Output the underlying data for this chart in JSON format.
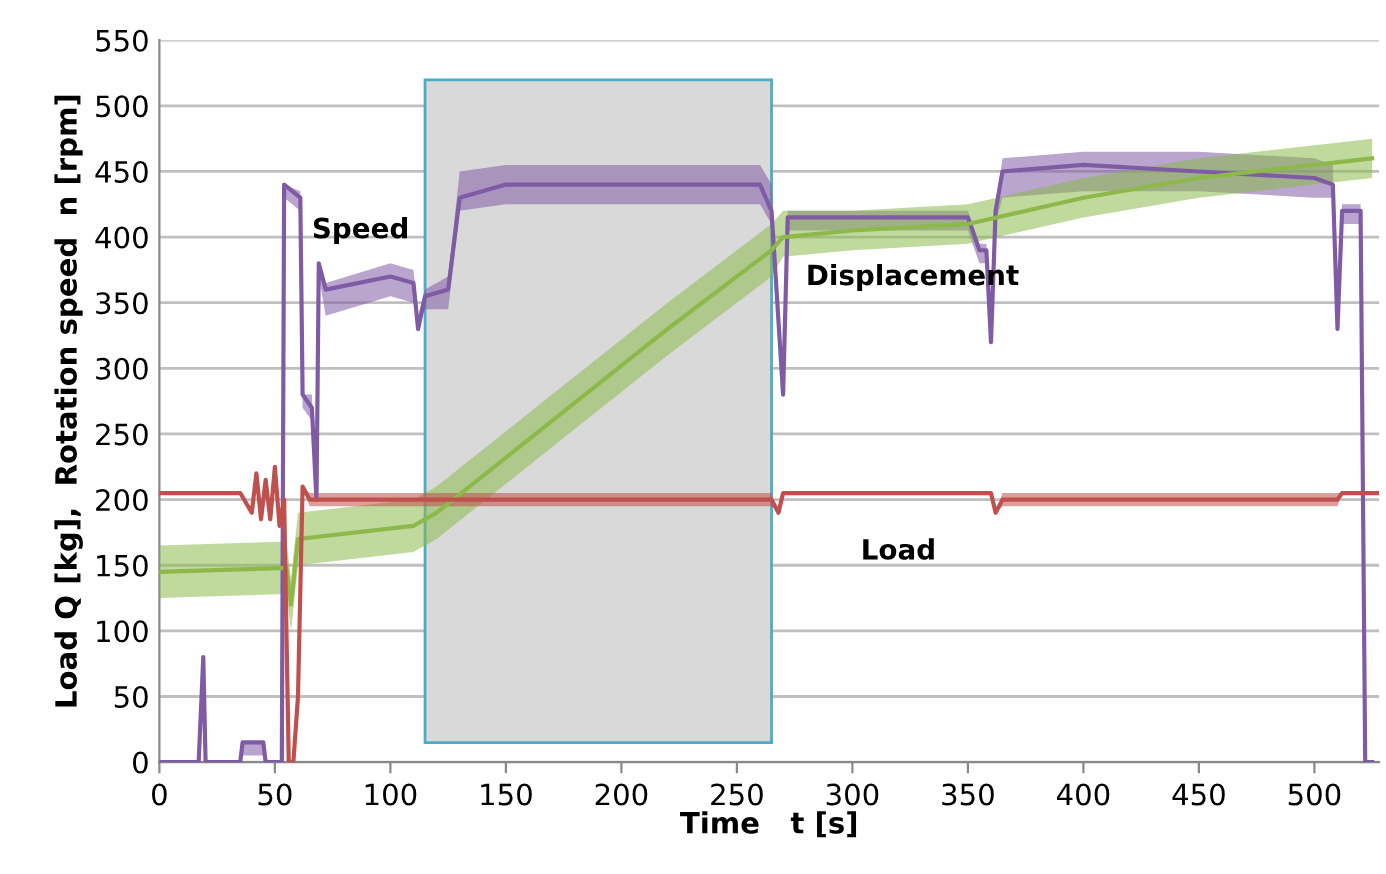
{
  "chart_data": {
    "type": "line",
    "xlabel": "Time   t [s]",
    "ylabel": "Load Q [kg],  Rotation speed  n [rpm]",
    "xlim": [
      0,
      528
    ],
    "xticks": [
      0,
      50,
      100,
      150,
      200,
      250,
      300,
      350,
      400,
      450,
      500
    ],
    "ylim": [
      0,
      550
    ],
    "yticks": [
      0,
      50,
      100,
      150,
      200,
      250,
      300,
      350,
      400,
      450,
      500,
      550
    ],
    "grid": "y",
    "legend": false,
    "marker": "none",
    "line_style": "solid",
    "bands": [
      {
        "axis": "x",
        "from": 115,
        "to": 265,
        "color": "#d9d9d9"
      }
    ],
    "series": [
      {
        "name": "Speed",
        "color": "#7f5ba6",
        "x": [
          0,
          17,
          19,
          20,
          35,
          36,
          45,
          46,
          53,
          54,
          61,
          62,
          66,
          68,
          69,
          72,
          100,
          110,
          112,
          115,
          125,
          130,
          150,
          200,
          260,
          265,
          270,
          272,
          350,
          355,
          358,
          360,
          362,
          365,
          400,
          450,
          500,
          508,
          510,
          512,
          520,
          522,
          525
        ],
        "values": [
          0,
          0,
          80,
          0,
          0,
          15,
          15,
          0,
          0,
          440,
          430,
          280,
          270,
          200,
          380,
          360,
          370,
          365,
          330,
          355,
          360,
          430,
          440,
          440,
          440,
          420,
          280,
          415,
          415,
          390,
          390,
          320,
          420,
          450,
          455,
          450,
          445,
          440,
          330,
          420,
          420,
          0,
          0
        ],
        "lower": [
          0,
          0,
          80,
          0,
          0,
          5,
          5,
          0,
          0,
          430,
          420,
          270,
          260,
          200,
          370,
          340,
          355,
          350,
          330,
          345,
          345,
          420,
          425,
          425,
          425,
          410,
          280,
          405,
          405,
          380,
          380,
          320,
          410,
          430,
          435,
          435,
          430,
          430,
          330,
          410,
          410,
          0,
          0
        ],
        "upper": [
          0,
          0,
          80,
          0,
          0,
          15,
          15,
          0,
          0,
          440,
          435,
          280,
          280,
          200,
          380,
          365,
          380,
          375,
          340,
          360,
          370,
          450,
          455,
          455,
          455,
          440,
          280,
          420,
          420,
          395,
          395,
          320,
          425,
          460,
          465,
          465,
          460,
          455,
          330,
          425,
          425,
          0,
          0
        ]
      },
      {
        "name": "Displacement",
        "color": "#8db94a",
        "x": [
          0,
          55,
          57,
          60,
          110,
          120,
          170,
          220,
          265,
          270,
          300,
          350,
          400,
          450,
          500,
          525
        ],
        "values": [
          145,
          148,
          120,
          170,
          180,
          190,
          260,
          330,
          390,
          400,
          405,
          410,
          430,
          445,
          455,
          460
        ],
        "lower": [
          125,
          128,
          100,
          150,
          160,
          170,
          240,
          310,
          370,
          385,
          390,
          395,
          415,
          430,
          440,
          445
        ],
        "upper": [
          165,
          168,
          140,
          190,
          200,
          210,
          280,
          350,
          410,
          420,
          420,
          425,
          445,
          460,
          470,
          475
        ]
      },
      {
        "name": "Load",
        "color": "#c0504d",
        "x": [
          0,
          35,
          40,
          42,
          44,
          46,
          48,
          50,
          52,
          54,
          56,
          58,
          60,
          62,
          65,
          265,
          268,
          270,
          360,
          362,
          365,
          510,
          512,
          528
        ],
        "values": [
          205,
          205,
          190,
          220,
          185,
          215,
          185,
          225,
          180,
          200,
          0,
          0,
          50,
          210,
          200,
          200,
          190,
          205,
          205,
          190,
          200,
          200,
          205,
          205
        ],
        "lower": [
          205,
          205,
          190,
          220,
          185,
          215,
          185,
          225,
          180,
          200,
          0,
          0,
          50,
          210,
          195,
          195,
          190,
          205,
          205,
          190,
          195,
          195,
          205,
          205
        ],
        "upper": [
          205,
          205,
          190,
          220,
          185,
          215,
          185,
          225,
          180,
          200,
          0,
          0,
          50,
          210,
          205,
          205,
          190,
          205,
          205,
          190,
          205,
          205,
          205,
          205
        ]
      }
    ]
  }
}
